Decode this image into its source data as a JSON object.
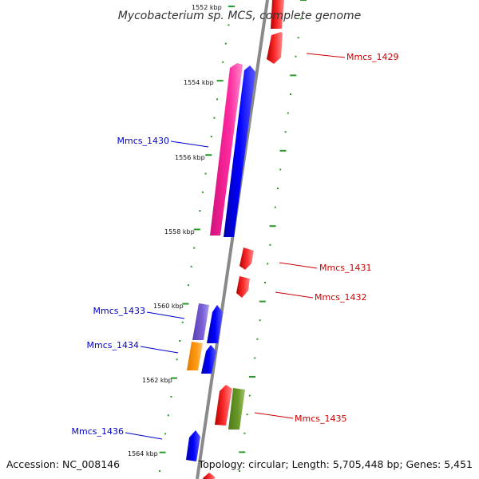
{
  "title": "Mycobacterium sp. MCS, complete genome",
  "footer": {
    "accession": "Accession: NC_008146",
    "topology": "Topology: circular; Length: 5,705,448 bp; Genes: 5,451"
  },
  "colors": {
    "backbone": "#8a8a8a",
    "dot_ring": "#2a9a2a",
    "forward_label": "#cc0000",
    "reverse_label": "#0000cc"
  },
  "ticks": [
    {
      "label": "1552 kbp"
    },
    {
      "label": "1554 kbp"
    },
    {
      "label": "1556 kbp"
    },
    {
      "label": "1558 kbp"
    },
    {
      "label": "1560 kbp"
    },
    {
      "label": "1562 kbp"
    },
    {
      "label": "1564 kbp"
    }
  ],
  "genes": [
    {
      "name": "Mmcs_1429",
      "strand": "forward",
      "color": "#ff0000"
    },
    {
      "name": "Mmcs_1430",
      "strand": "reverse",
      "color": "#ff1f9f"
    },
    {
      "name": "Mmcs_1431",
      "strand": "forward",
      "color": "#ff0000"
    },
    {
      "name": "Mmcs_1432",
      "strand": "forward",
      "color": "#ff0000"
    },
    {
      "name": "Mmcs_1433",
      "strand": "reverse",
      "color": "#7055cc"
    },
    {
      "name": "Mmcs_1434",
      "strand": "reverse",
      "color": "#ff9400"
    },
    {
      "name": "Mmcs_1435",
      "strand": "forward",
      "color": "#6b9a2a"
    },
    {
      "name": "Mmcs_1436",
      "strand": "reverse",
      "color": "#0000ff"
    }
  ]
}
